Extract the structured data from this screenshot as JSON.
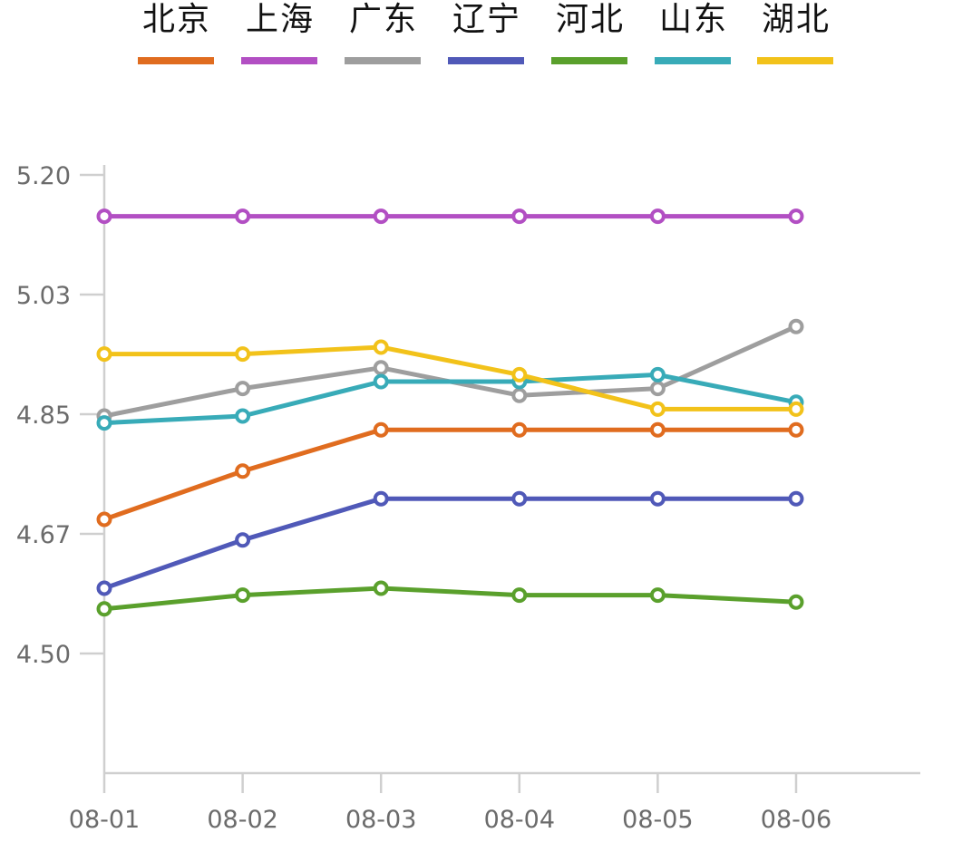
{
  "chart_data": {
    "type": "line",
    "categories": [
      "08-01",
      "08-02",
      "08-03",
      "08-04",
      "08-05",
      "08-06"
    ],
    "yticks": [
      "5.20",
      "5.03",
      "4.85",
      "4.67",
      "4.50"
    ],
    "ylim": [
      4.33,
      5.2
    ],
    "grid": false,
    "legend_position": "top",
    "series": [
      {
        "name": "北京",
        "color": "#e06c1f",
        "values": [
          4.7,
          4.77,
          4.83,
          4.83,
          4.83,
          4.83
        ]
      },
      {
        "name": "上海",
        "color": "#b24fc3",
        "values": [
          5.14,
          5.14,
          5.14,
          5.14,
          5.14,
          5.14
        ]
      },
      {
        "name": "广东",
        "color": "#9e9e9e",
        "values": [
          4.85,
          4.89,
          4.92,
          4.88,
          4.89,
          4.98
        ]
      },
      {
        "name": "辽宁",
        "color": "#5059b8",
        "values": [
          4.6,
          4.67,
          4.73,
          4.73,
          4.73,
          4.73
        ]
      },
      {
        "name": "河北",
        "color": "#5aa02c",
        "values": [
          4.57,
          4.59,
          4.6,
          4.59,
          4.59,
          4.58
        ]
      },
      {
        "name": "山东",
        "color": "#38abb8",
        "values": [
          4.84,
          4.85,
          4.9,
          4.9,
          4.91,
          4.87
        ]
      },
      {
        "name": "湖北",
        "color": "#f2c21a",
        "values": [
          4.94,
          4.94,
          4.95,
          4.91,
          4.86,
          4.86
        ]
      }
    ]
  }
}
